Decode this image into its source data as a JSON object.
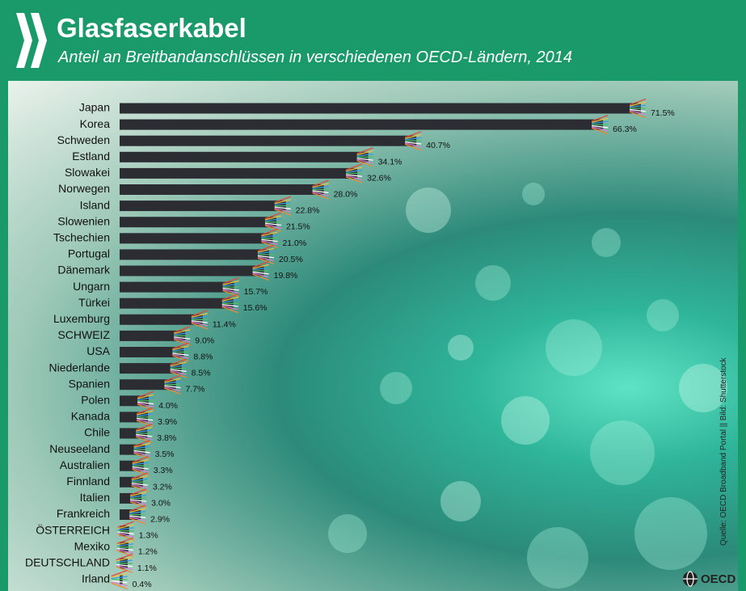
{
  "header": {
    "title": "Glasfaserkabel",
    "subtitle": "Anteil an Breitbandanschlüssen in verschiedenen OECD-Ländern, 2014"
  },
  "source": "Quelle: OECD Broadband Portal || Bild: Shutterstock",
  "logo_text": "OECD",
  "colors": {
    "brand_green": "#1a9a6a",
    "bar": "#2b2d33"
  },
  "icons": [
    "chevron-logo-icon",
    "oecd-globe-icon"
  ],
  "chart_data": {
    "type": "bar",
    "orientation": "horizontal",
    "title": "Glasfaserkabel",
    "subtitle": "Anteil an Breitbandanschlüssen in verschiedenen OECD-Ländern, 2014",
    "categories": [
      "Japan",
      "Korea",
      "Schweden",
      "Estland",
      "Slowakei",
      "Norwegen",
      "Island",
      "Slowenien",
      "Tschechien",
      "Portugal",
      "Dänemark",
      "Ungarn",
      "Türkei",
      "Luxemburg",
      "SCHWEIZ",
      "USA",
      "Niederlande",
      "Spanien",
      "Polen",
      "Kanada",
      "Chile",
      "Neuseeland",
      "Australien",
      "Finnland",
      "Italien",
      "Frankreich",
      "ÖSTERREICH",
      "Mexiko",
      "DEUTSCHLAND",
      "Irland"
    ],
    "values": [
      71.5,
      66.3,
      40.7,
      34.1,
      32.6,
      28.0,
      22.8,
      21.5,
      21.0,
      20.5,
      19.8,
      15.7,
      15.6,
      11.4,
      9.0,
      8.8,
      8.5,
      7.7,
      4.0,
      3.9,
      3.8,
      3.5,
      3.3,
      3.2,
      3.0,
      2.9,
      1.3,
      1.2,
      1.1,
      0.4
    ],
    "labels": [
      "71.5%",
      "66.3%",
      "40.7%",
      "34.1%",
      "32.6%",
      "28.0%",
      "22.8%",
      "21.5%",
      "21.0%",
      "20.5%",
      "19.8%",
      "15.7%",
      "15.6%",
      "11.4%",
      "9.0%",
      "8.8%",
      "8.5%",
      "7.7%",
      "4.0%",
      "3.9%",
      "3.8%",
      "3.5%",
      "3.3%",
      "3.2%",
      "3.0%",
      "2.9%",
      "1.3%",
      "1.2%",
      "1.1%",
      "0.4%"
    ],
    "xlim": [
      0,
      75
    ],
    "grid": false,
    "legend": "none"
  }
}
